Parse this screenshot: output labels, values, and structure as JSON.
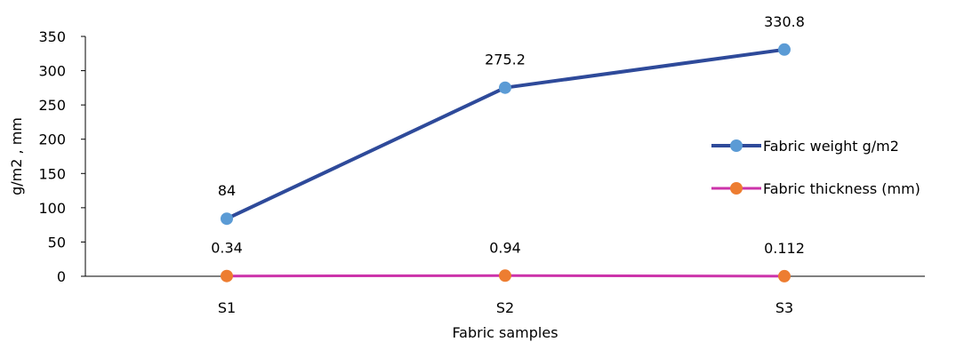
{
  "chart_data": {
    "type": "line",
    "title": "",
    "xlabel": "Fabric samples",
    "ylabel": "g/m2  , mm",
    "categories": [
      "S1",
      "S2",
      "S3"
    ],
    "ylim": [
      0,
      350
    ],
    "yticks": [
      0,
      50,
      100,
      150,
      200,
      250,
      300,
      350
    ],
    "grid": false,
    "legend_position": "right",
    "series": [
      {
        "name": "Fabric weight g/m2",
        "values": [
          84,
          275.2,
          330.8
        ],
        "labels": [
          "84",
          "275.2",
          "330.8"
        ],
        "line_color": "#2E4A9A",
        "marker_color": "#5B9BD5"
      },
      {
        "name": "Fabric thickness (mm)",
        "values": [
          0.34,
          0.94,
          0.112
        ],
        "labels": [
          "0.34",
          "0.94",
          "0.112"
        ],
        "line_color": "#CC33AA",
        "marker_color": "#ED7D31"
      }
    ]
  }
}
